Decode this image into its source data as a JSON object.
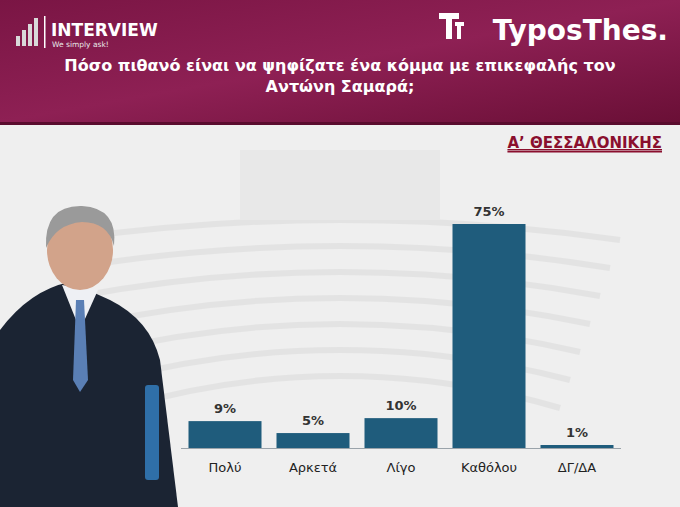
{
  "chart_data": {
    "type": "bar",
    "title": "Πόσο πιθανό είναι να ψηφίζατε ένα κόμμα με επικεφαλής τον Αντώνη Σαμαρά;",
    "subtitle": "Α’ ΘΕΣΣΑΛΟΝΙΚΗΣ",
    "annotations": [
      "INTERVIEW",
      "We simply ask!",
      "TyposThes."
    ],
    "categories": [
      "Πολύ",
      "Αρκετά",
      "Λίγο",
      "Καθόλου",
      "ΔΓ/ΔΑ"
    ],
    "values": [
      9,
      5,
      10,
      75,
      1
    ],
    "value_labels": [
      "9%",
      "5%",
      "10%",
      "75%",
      "1%"
    ],
    "color": "#1f5c7c",
    "ylim": [
      0,
      75
    ],
    "data_labels": true,
    "tick_labels": "x",
    "grid": false
  }
}
